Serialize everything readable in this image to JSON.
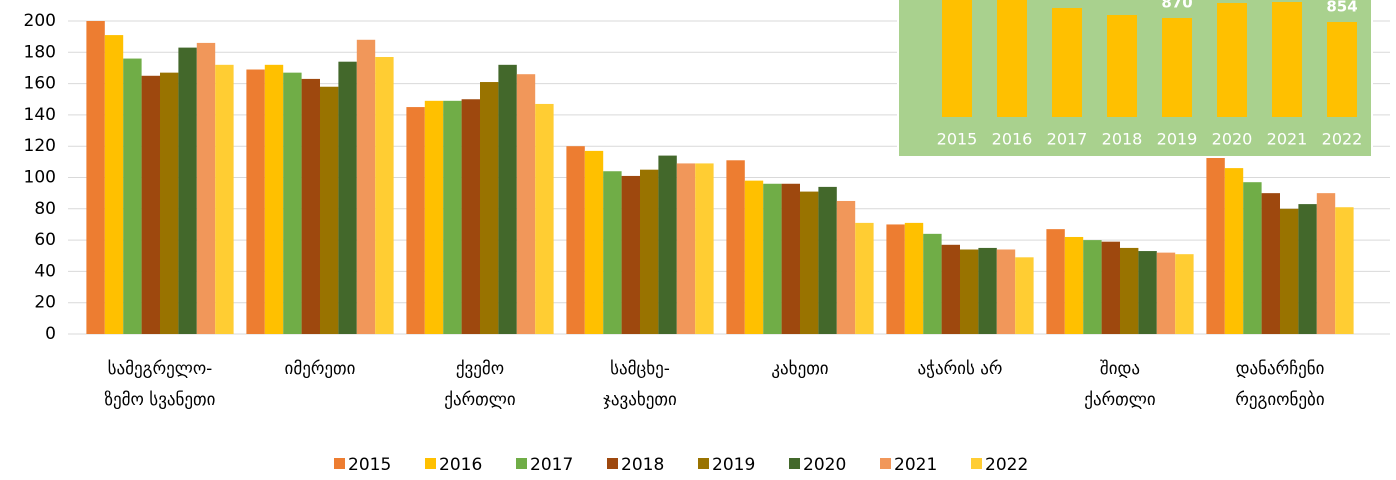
{
  "chart_data": [
    {
      "type": "bar",
      "categories": [
        [
          "სამეგრელო-",
          "ზემო სვანეთი"
        ],
        [
          "იმერეთი"
        ],
        [
          "ქვემო",
          "ქართლი"
        ],
        [
          "სამცხე-",
          "ჯავახეთი"
        ],
        [
          "კახეთი"
        ],
        [
          "აჭარის არ"
        ],
        [
          "შიდა",
          "ქართლი"
        ],
        [
          "დანარჩენი",
          "რეგიონები"
        ]
      ],
      "series": [
        {
          "name": "2015",
          "color": "#ed7d31",
          "values": [
            200,
            169,
            145,
            120,
            111,
            70,
            67,
            113
          ]
        },
        {
          "name": "2016",
          "color": "#ffc000",
          "values": [
            191,
            172,
            149,
            117,
            98,
            71,
            62,
            106
          ]
        },
        {
          "name": "2017",
          "color": "#70ad47",
          "values": [
            176,
            167,
            149,
            104,
            96,
            64,
            60,
            97
          ]
        },
        {
          "name": "2018",
          "color": "#9e480e",
          "values": [
            165,
            163,
            150,
            101,
            96,
            57,
            59,
            90
          ]
        },
        {
          "name": "2019",
          "color": "#997300",
          "values": [
            167,
            158,
            161,
            105,
            91,
            54,
            55,
            80
          ]
        },
        {
          "name": "2020",
          "color": "#43682b",
          "values": [
            183,
            174,
            172,
            114,
            94,
            55,
            53,
            83
          ]
        },
        {
          "name": "2021",
          "color": "#f1975a",
          "values": [
            186,
            188,
            166,
            109,
            85,
            54,
            52,
            90
          ]
        },
        {
          "name": "2022",
          "color": "#ffcd33",
          "values": [
            172,
            177,
            147,
            109,
            71,
            49,
            51,
            81
          ]
        }
      ],
      "ylim": [
        0,
        200
      ],
      "yticks": [
        0,
        20,
        40,
        60,
        80,
        100,
        120,
        140,
        160,
        180,
        200
      ],
      "grid": true,
      "legend": "bottom"
    },
    {
      "type": "bar",
      "categories": [
        "2015",
        "2016",
        "2017",
        "2018",
        "2019",
        "2020",
        "2021",
        "2022"
      ],
      "values": [
        960,
        960,
        910,
        882,
        870,
        930,
        934,
        854
      ],
      "value_labels": [
        null,
        null,
        null,
        null,
        "870",
        null,
        null,
        "854"
      ],
      "color": "#ffc000",
      "background": "#a9d18e",
      "ylim": [
        474,
        950
      ]
    }
  ]
}
